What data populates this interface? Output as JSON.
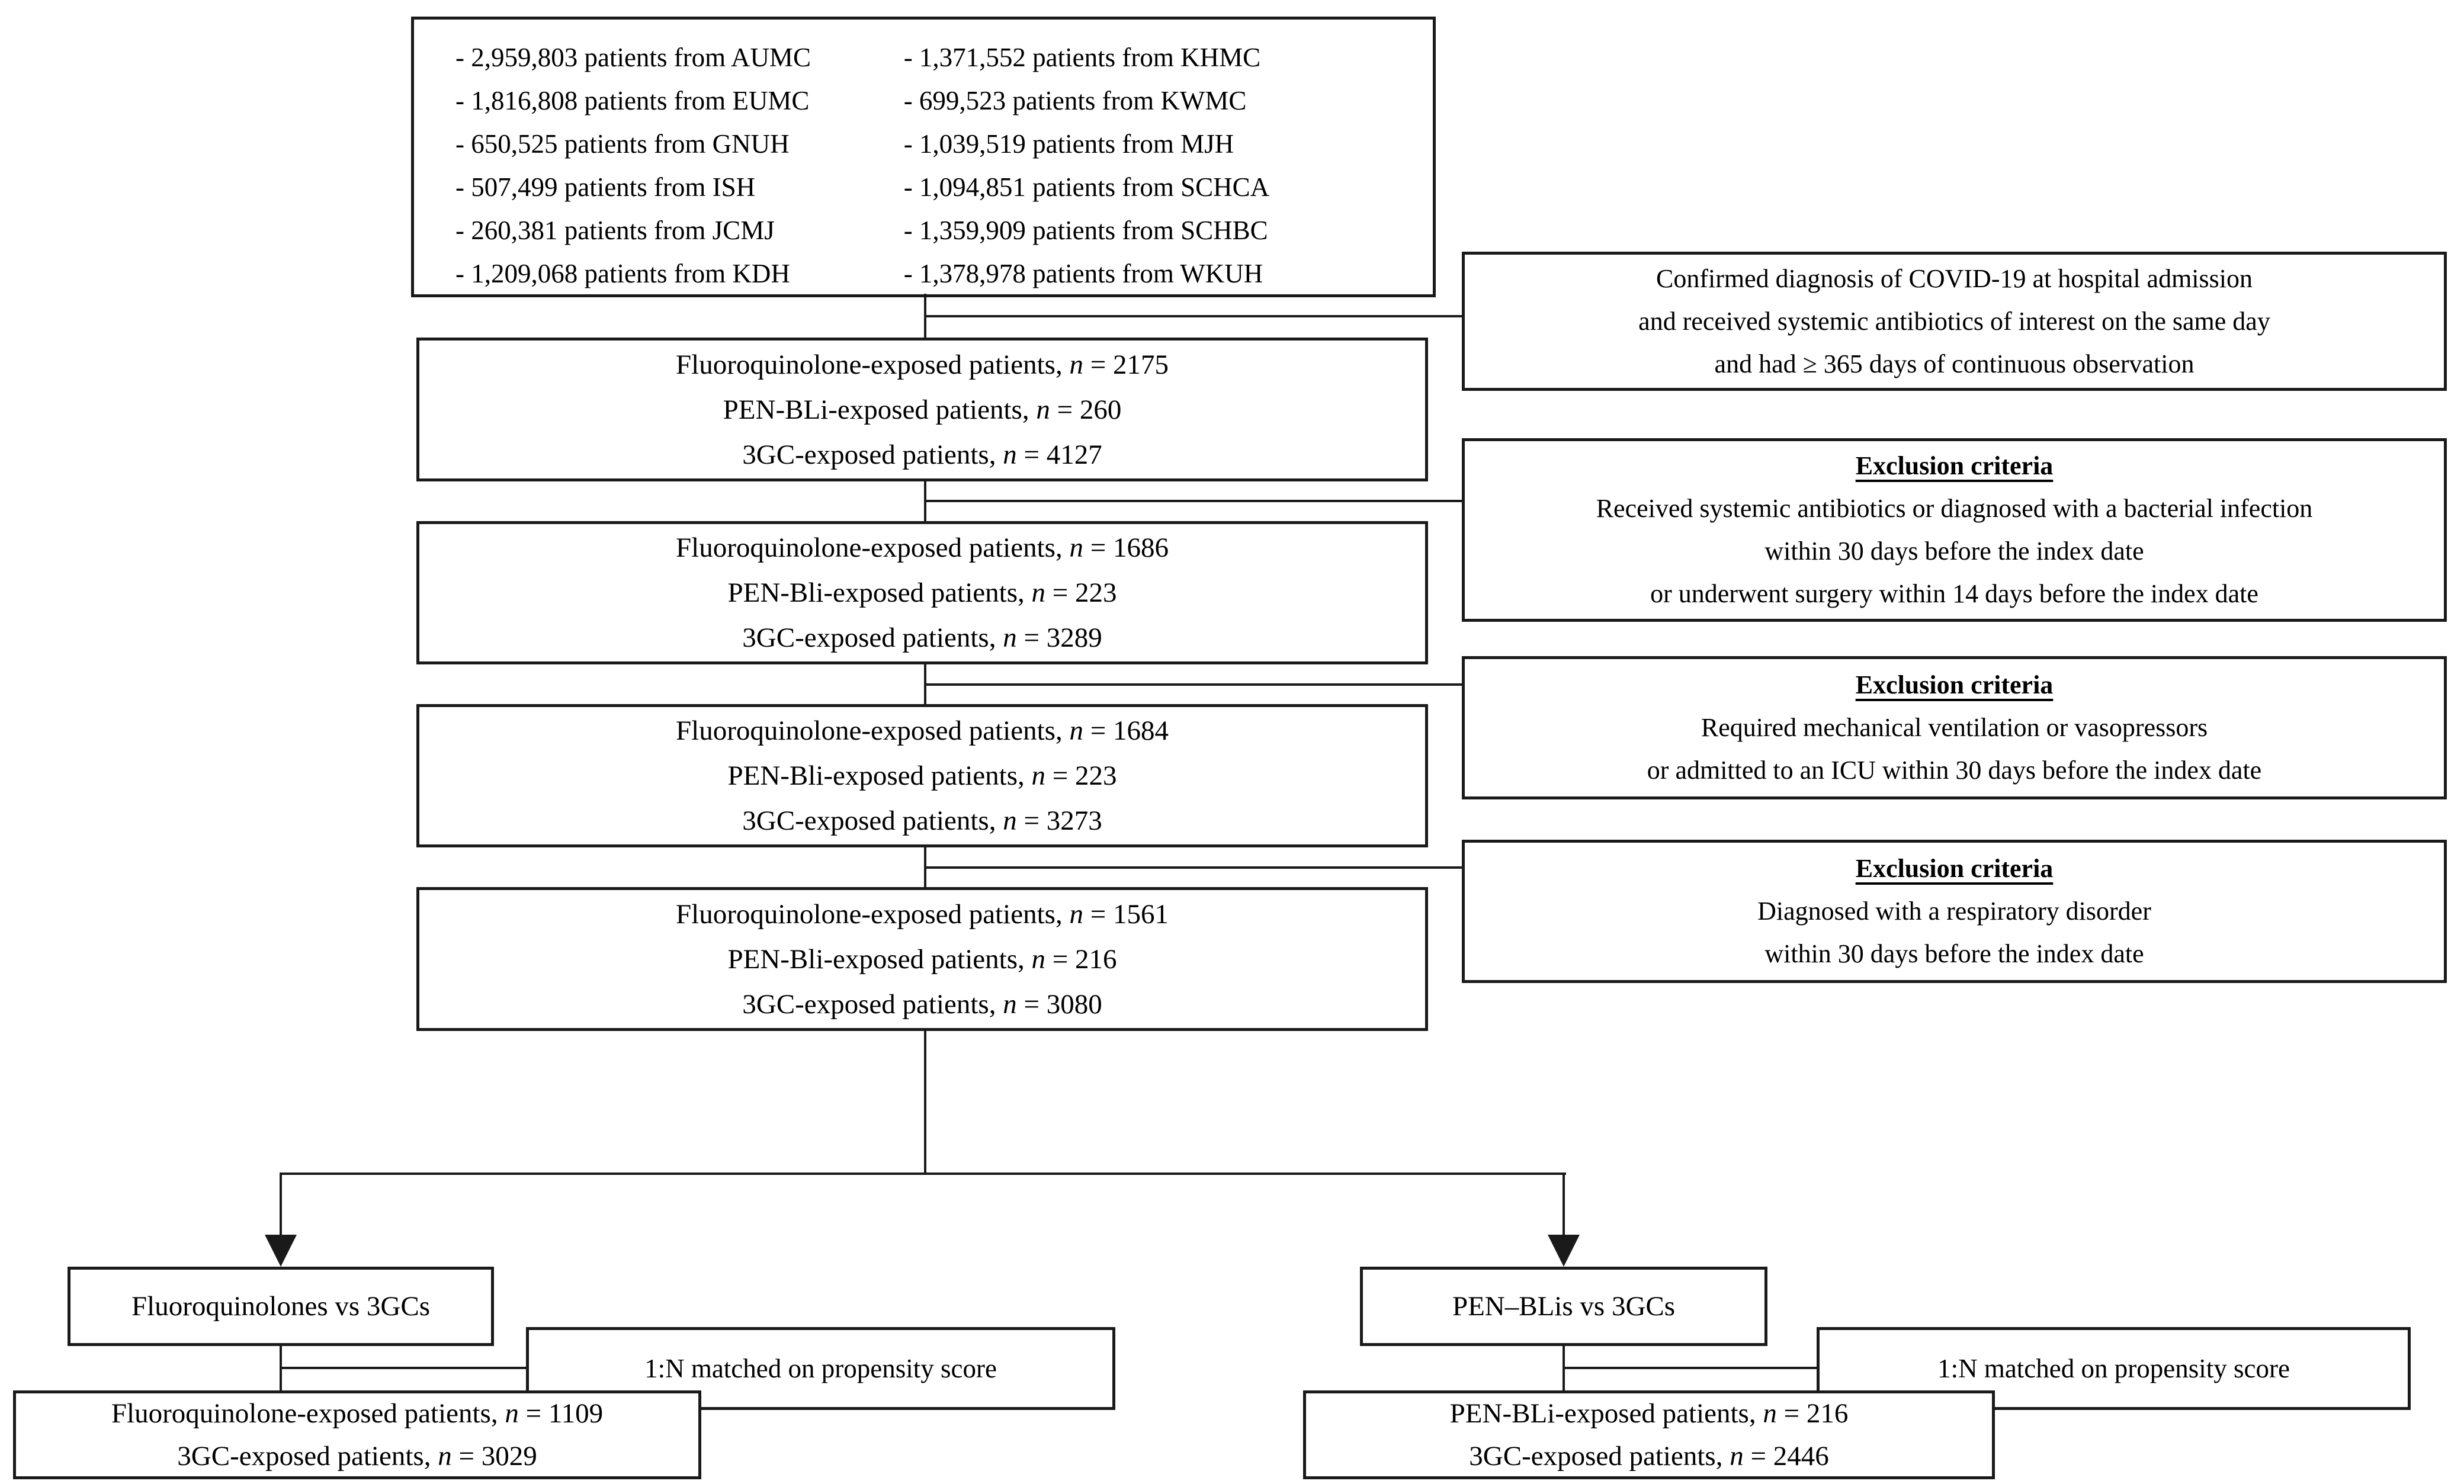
{
  "colors": {
    "box_border": "#1a1a1a",
    "line": "#1a1a1a",
    "background": "#ffffff",
    "text": "#000000"
  },
  "source_box": {
    "col1": [
      "- 2,959,803 patients from AUMC",
      "- 1,816,808 patients from EUMC",
      "- 650,525 patients from GNUH",
      "- 507,499 patients from ISH",
      "- 260,381 patients from JCMJ",
      "- 1,209,068 patients from KDH"
    ],
    "col2": [
      "- 1,371,552 patients from KHMC",
      "- 699,523 patients from KWMC",
      "- 1,039,519 patients from MJH",
      "- 1,094,851 patients from SCHCA",
      "- 1,359,909 patients from SCHBC",
      "- 1,378,978 patients from WKUH"
    ]
  },
  "inclusion_box": {
    "lines": [
      "Confirmed diagnosis of COVID-19 at hospital admission",
      "and received systemic antibiotics of interest on the same day",
      "and had ≥ 365 days of continuous observation"
    ]
  },
  "cohort_boxes": [
    {
      "rows": [
        {
          "label": "Fluoroquinolone-exposed patients",
          "n": "2175"
        },
        {
          "label": "PEN-BLi-exposed patients",
          "n": "260"
        },
        {
          "label": "3GC-exposed patients",
          "n": "4127"
        }
      ]
    },
    {
      "rows": [
        {
          "label": "Fluoroquinolone-exposed patients",
          "n": "1686"
        },
        {
          "label": "PEN-Bli-exposed patients",
          "n": "223"
        },
        {
          "label": "3GC-exposed patients",
          "n": "3289"
        }
      ]
    },
    {
      "rows": [
        {
          "label": "Fluoroquinolone-exposed patients",
          "n": "1684"
        },
        {
          "label": "PEN-Bli-exposed patients",
          "n": "223"
        },
        {
          "label": "3GC-exposed patients",
          "n": "3273"
        }
      ]
    },
    {
      "rows": [
        {
          "label": "Fluoroquinolone-exposed patients",
          "n": "1561"
        },
        {
          "label": "PEN-Bli-exposed patients",
          "n": "216"
        },
        {
          "label": "3GC-exposed patients",
          "n": "3080"
        }
      ]
    }
  ],
  "exclusion_boxes": [
    {
      "title": "Exclusion criteria",
      "lines": [
        "Received systemic antibiotics or diagnosed with a bacterial infection",
        "within 30 days before the index date",
        "or underwent surgery within 14 days before the index date"
      ]
    },
    {
      "title": "Exclusion criteria",
      "lines": [
        "Required mechanical ventilation or vasopressors",
        "or admitted to an ICU within 30 days before the index date"
      ]
    },
    {
      "title": "Exclusion criteria",
      "lines": [
        "Diagnosed with a respiratory disorder",
        "within 30 days before the index date"
      ]
    }
  ],
  "left_branch": {
    "title": "Fluoroquinolones vs 3GCs",
    "match_label": "1:N matched on propensity score",
    "rows": [
      {
        "label": "Fluoroquinolone-exposed patients",
        "n": "1109"
      },
      {
        "label": "3GC-exposed patients",
        "n": "3029"
      }
    ]
  },
  "right_branch": {
    "title": "PEN–BLis vs 3GCs",
    "match_label": "1:N matched on propensity score",
    "rows": [
      {
        "label": "PEN-BLi-exposed patients",
        "n": "216"
      },
      {
        "label": "3GC-exposed patients",
        "n": "2446"
      }
    ]
  }
}
